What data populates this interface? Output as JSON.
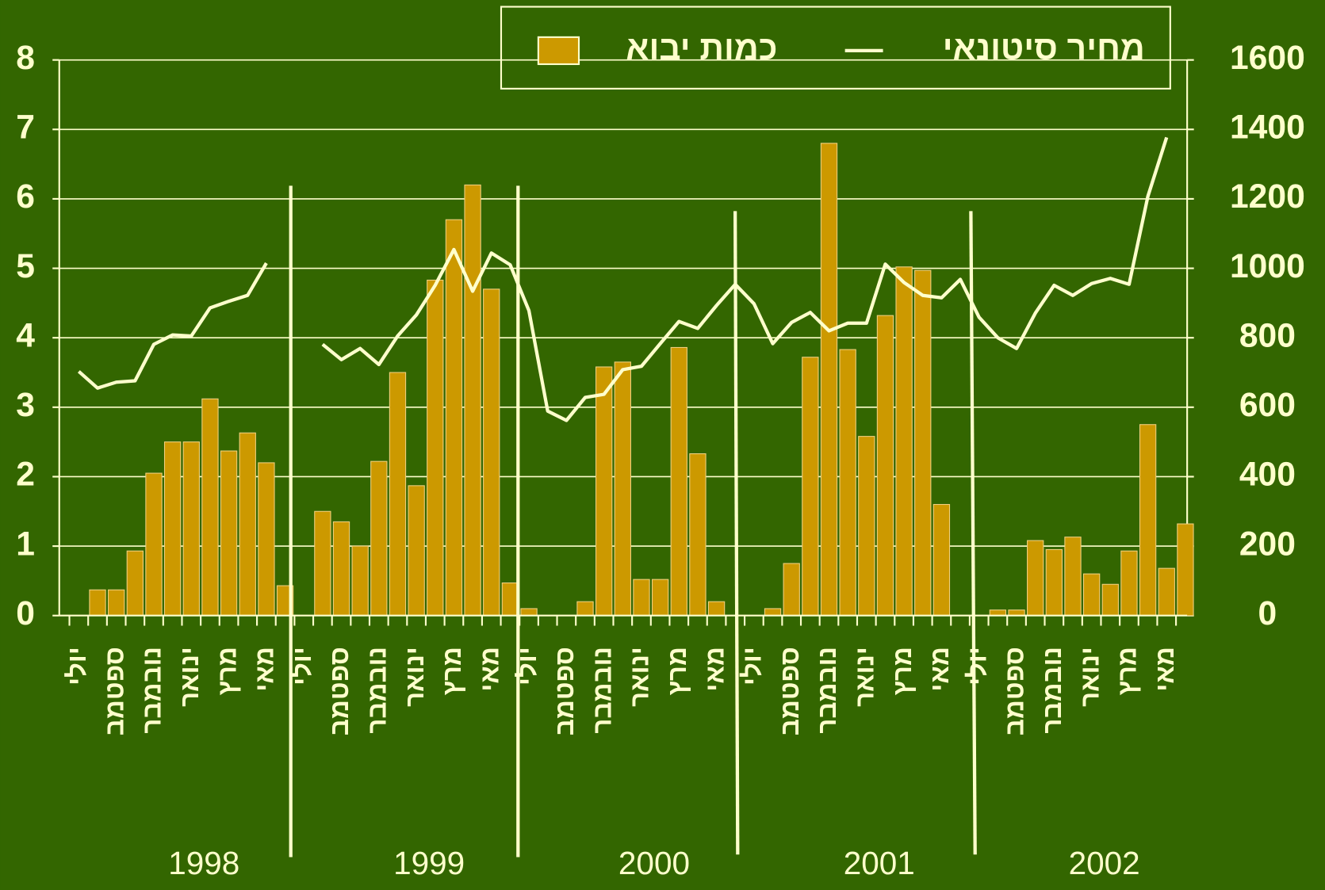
{
  "chart_data": {
    "type": "bar+line",
    "categories": [
      "יולי",
      null,
      "ספטמב",
      null,
      "נובמבר",
      null,
      "ינואר",
      null,
      "מרץ",
      null,
      "מאי",
      null,
      "יולי",
      null,
      "ספטמב",
      null,
      "נובמבר",
      null,
      "ינואר",
      null,
      "מרץ",
      null,
      "מאי",
      null,
      "יולי",
      null,
      "ספטמב",
      null,
      "נובמבר",
      null,
      "ינואר",
      null,
      "מרץ",
      null,
      "מאי",
      null,
      "יולי",
      null,
      "ספטמב",
      null,
      "נובמבר",
      null,
      "ינואר",
      null,
      "מרץ",
      null,
      "מאי",
      null,
      "יולי",
      null,
      "ספטמב",
      null,
      "נובמבר",
      null,
      "ינואר",
      null,
      "מרץ",
      null,
      "מאי",
      null
    ],
    "x_groups": [
      "1998",
      "1999",
      "2000",
      "2001",
      "2002"
    ],
    "series": [
      {
        "name": "כמות יבוא",
        "type": "bar",
        "color": "#cc9900",
        "axis": "y",
        "values": [
          null,
          0.37,
          0.37,
          0.93,
          2.05,
          2.5,
          2.5,
          3.12,
          2.37,
          2.63,
          2.2,
          0.43,
          null,
          1.5,
          1.35,
          1.0,
          2.22,
          3.5,
          1.87,
          4.83,
          5.7,
          6.2,
          4.7,
          0.47,
          0.1,
          null,
          null,
          0.2,
          3.58,
          3.65,
          0.52,
          0.52,
          3.86,
          2.33,
          0.2,
          null,
          null,
          0.1,
          0.75,
          3.72,
          6.8,
          3.83,
          2.58,
          4.32,
          5.02,
          4.97,
          1.6,
          null,
          null,
          0.08,
          0.08,
          1.08,
          0.95,
          1.13,
          0.6,
          0.45,
          0.93,
          2.75,
          0.68,
          1.32
        ]
      },
      {
        "name": "מחיר סיטונאי",
        "type": "line",
        "color": "#ffffcc",
        "axis": "y2",
        "values": [
          703,
          655,
          672,
          676,
          781,
          808,
          805,
          886,
          905,
          922,
          1015,
          null,
          null,
          781,
          737,
          769,
          723,
          805,
          866,
          951,
          1054,
          934,
          1044,
          1010,
          878,
          589,
          562,
          628,
          637,
          708,
          718,
          783,
          847,
          827,
          893,
          954,
          898,
          783,
          844,
          873,
          820,
          842,
          842,
          1012,
          959,
          922,
          915,
          968,
          859,
          800,
          769,
          871,
          951,
          922,
          956,
          971,
          954,
          1207,
          1377,
          null
        ]
      }
    ],
    "ylim": [
      0,
      8
    ],
    "yticks": [
      0,
      1,
      2,
      3,
      4,
      5,
      6,
      7,
      8
    ],
    "y2lim": [
      0,
      1600
    ],
    "y2ticks": [
      0,
      200,
      400,
      600,
      800,
      1000,
      1200,
      1400,
      1600
    ],
    "grid": true,
    "legend": "top-right"
  }
}
